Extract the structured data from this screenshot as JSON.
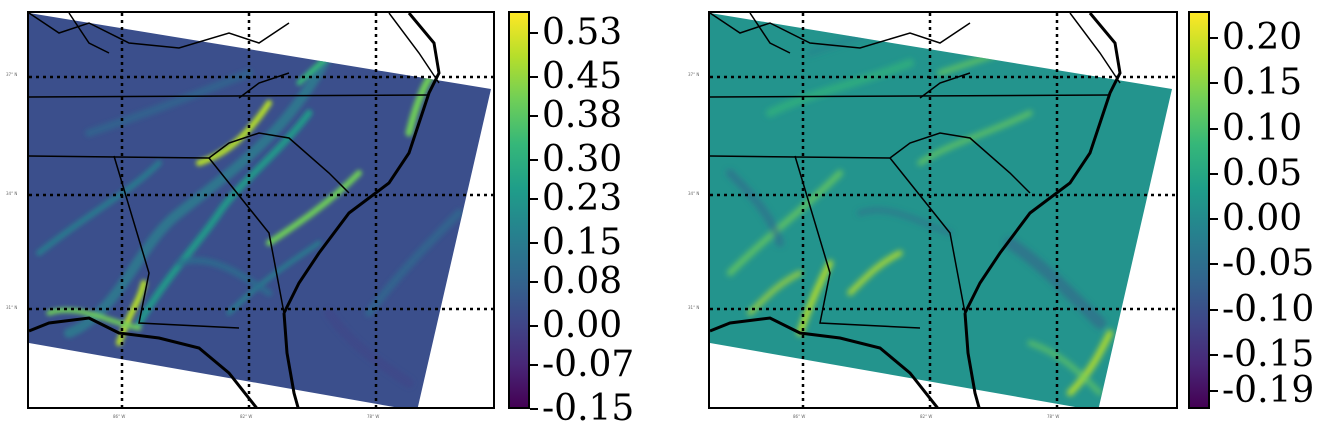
{
  "maps": [
    {
      "colorbar_ticks": [
        "0.53",
        "0.45",
        "0.38",
        "0.30",
        "0.23",
        "0.15",
        "0.08",
        "0.00",
        "-0.07",
        "-0.15"
      ],
      "colorbar_range": [
        -0.15,
        0.57
      ],
      "colormap": "viridis",
      "field_tone": "dark",
      "lat_labels": [
        "37° N",
        "34° N",
        "31° N"
      ],
      "lon_labels": [
        "86° W",
        "82° W",
        "78° W"
      ]
    },
    {
      "colorbar_ticks": [
        "0.20",
        "0.15",
        "0.10",
        "0.05",
        "0.00",
        "-0.05",
        "-0.10",
        "-0.15",
        "-0.19"
      ],
      "colorbar_range": [
        -0.21,
        0.23
      ],
      "colormap": "viridis",
      "field_tone": "mid",
      "lat_labels": [
        "37° N",
        "34° N",
        "31° N"
      ],
      "lon_labels": [
        "86° W",
        "82° W",
        "78° W"
      ]
    }
  ],
  "colors": {
    "viridis_stops": [
      "#440154",
      "#482878",
      "#3e4989",
      "#31688e",
      "#26828e",
      "#1f9e89",
      "#35b779",
      "#6ece58",
      "#b5de2b",
      "#fde725"
    ]
  }
}
